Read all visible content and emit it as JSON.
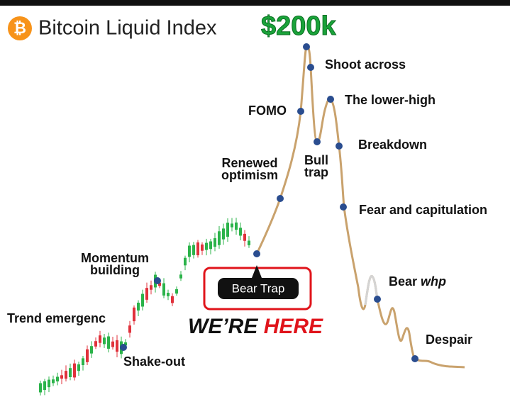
{
  "header": {
    "icon": "₿",
    "title": "Bitcoin Liquid Index",
    "target": "$200k"
  },
  "labels": {
    "shoot": "Shoot across",
    "fomo": "FOMO",
    "lower_high": "The lower-high",
    "breakdown": "Breakdown",
    "bull_trap": [
      "Bull",
      "trap"
    ],
    "renewed": [
      "Renewed",
      "optimism"
    ],
    "fear": "Fear and capitulation",
    "bear": {
      "text": "Bear",
      "emphasis": "whp"
    },
    "despair": "Despair",
    "momentum": [
      "Momentum",
      "building"
    ],
    "trend": "Trend emergenc",
    "shake": "Shake-out"
  },
  "callout": {
    "label": "Bear Trap"
  },
  "banner": {
    "part1": "WE’RE",
    "part2": "HERE"
  }
}
